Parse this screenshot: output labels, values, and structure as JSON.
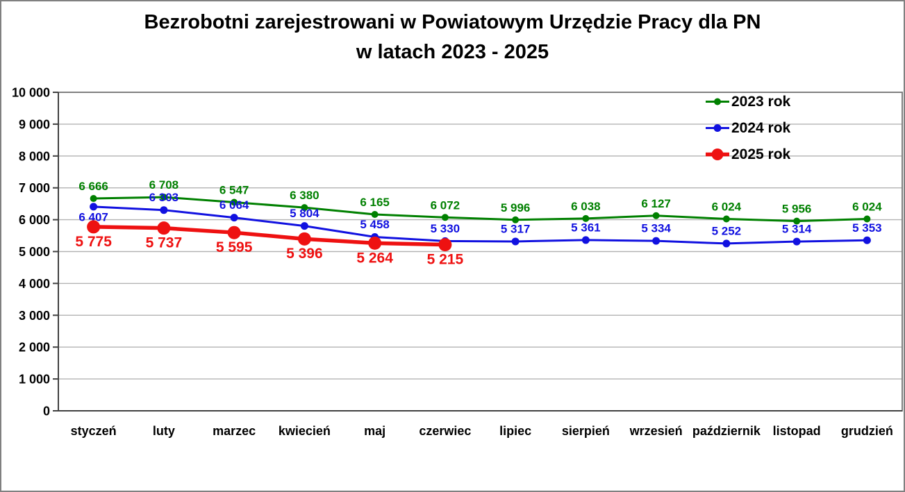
{
  "window": {
    "background_color": "#ffffff",
    "frame_border_color": "#808080"
  },
  "chart_data": {
    "type": "line",
    "title": "Bezrobotni zarejestrowani w Powiatowym Urzędzie Pracy dla PN w latach 2023 - 2025",
    "title_lines": [
      "Bezrobotni zarejestrowani w Powiatowym Urzędzie Pracy dla PN",
      "w latach 2023 - 2025"
    ],
    "categories": [
      "styczeń",
      "luty",
      "marzec",
      "kwiecień",
      "maj",
      "czerwiec",
      "lipiec",
      "sierpień",
      "wrzesień",
      "październik",
      "listopad",
      "grudzień"
    ],
    "y_axis": {
      "min": 0,
      "max": 10000,
      "step": 1000,
      "tick_labels": [
        "0",
        "1 000",
        "2 000",
        "3 000",
        "4 000",
        "5 000",
        "6 000",
        "7 000",
        "8 000",
        "9 000",
        "10 000"
      ]
    },
    "ylim": [
      0,
      10000
    ],
    "grid": true,
    "gridline_color": "#b3b3b3",
    "plot_border_color": "#808080",
    "axis_color": "#404040",
    "legend_position": "top-right-inside",
    "series": [
      {
        "name": "2023 rok",
        "color": "#008000",
        "values": [
          6666,
          6708,
          6547,
          6380,
          6165,
          6072,
          5996,
          6038,
          6127,
          6024,
          5956,
          6024
        ],
        "line_width": 3,
        "marker_radius": 5,
        "label_size": 17,
        "label_position": "above",
        "label_overrides": {}
      },
      {
        "name": "2024 rok",
        "color": "#1111e0",
        "values": [
          6407,
          6303,
          6064,
          5804,
          5458,
          5330,
          5317,
          5361,
          5334,
          5252,
          5314,
          5353
        ],
        "line_width": 3,
        "marker_radius": 5.5,
        "label_size": 17,
        "label_position": "above",
        "label_overrides": {
          "0": "below"
        }
      },
      {
        "name": "2025 rok",
        "color": "#ee1111",
        "values": [
          5775,
          5737,
          5595,
          5396,
          5264,
          5215
        ],
        "line_width": 5.5,
        "marker_radius": 9.5,
        "label_size": 21,
        "label_position": "below",
        "label_overrides": {}
      }
    ]
  }
}
